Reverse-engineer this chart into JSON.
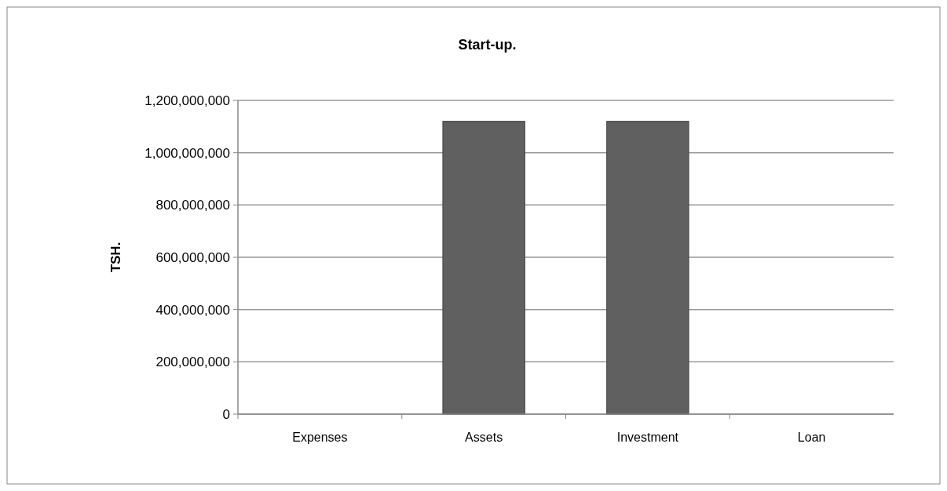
{
  "chart_data": {
    "type": "bar",
    "title": "Start-up.",
    "ylabel": "TSH.",
    "categories": [
      "Expenses",
      "Assets",
      "Investment",
      "Loan"
    ],
    "values": [
      0,
      1120000000,
      1120000000,
      0
    ],
    "color": "#606060",
    "ylim": [
      0,
      1200000000
    ],
    "yticks": [
      {
        "value": 0,
        "label": "0"
      },
      {
        "value": 200000000,
        "label": "200,000,000"
      },
      {
        "value": 400000000,
        "label": "400,000,000"
      },
      {
        "value": 600000000,
        "label": "600,000,000"
      },
      {
        "value": 800000000,
        "label": "800,000,000"
      },
      {
        "value": 1000000000,
        "label": "1,000,000,000"
      },
      {
        "value": 1200000000,
        "label": "1,200,000,000"
      }
    ],
    "grid": "y"
  }
}
